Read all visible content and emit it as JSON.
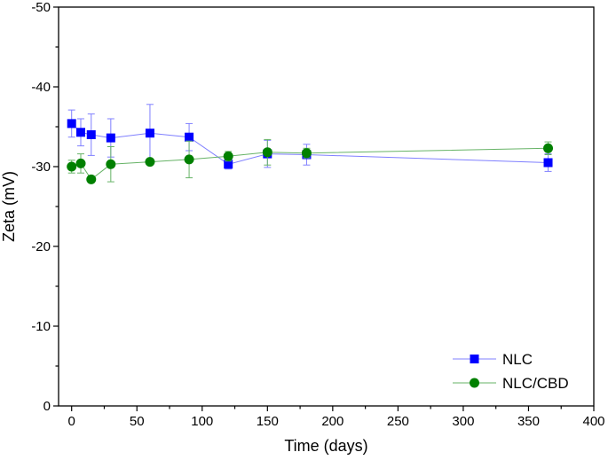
{
  "chart_data": {
    "type": "line",
    "xlabel": "Time (days)",
    "ylabel": "Zeta (mV)",
    "xlim": [
      -10,
      400
    ],
    "ylim": [
      0,
      -50
    ],
    "y_axis_inverted": true,
    "x_ticks": [
      0,
      50,
      100,
      150,
      200,
      250,
      300,
      350,
      400
    ],
    "y_ticks": [
      0,
      -10,
      -20,
      -30,
      -40,
      -50
    ],
    "x_tick_labels": [
      "0",
      "50",
      "100",
      "150",
      "200",
      "250",
      "300",
      "350",
      "400"
    ],
    "y_tick_labels": [
      "0",
      "-10",
      "-20",
      "-30",
      "-40",
      "-50"
    ],
    "grid": false,
    "legend_position": "bottom-right",
    "x": [
      0,
      7,
      15,
      30,
      60,
      90,
      120,
      150,
      180,
      365
    ],
    "series": [
      {
        "name": "NLC",
        "marker": "square",
        "color": "#0000FF",
        "line_color": "#7F7FFF",
        "values": [
          -35.4,
          -34.3,
          -34.0,
          -33.6,
          -34.2,
          -33.7,
          -30.3,
          -31.6,
          -31.5,
          -30.5
        ],
        "errors": [
          1.7,
          1.7,
          2.6,
          2.4,
          3.6,
          1.7,
          0.6,
          1.7,
          1.3,
          1.1
        ]
      },
      {
        "name": "NLC/CBD",
        "marker": "circle",
        "color": "#008000",
        "line_color": "#66B366",
        "values": [
          -30.0,
          -30.4,
          -28.4,
          -30.3,
          -30.6,
          -30.9,
          -31.3,
          -31.8,
          -31.7,
          -32.3
        ],
        "errors": [
          0.8,
          1.2,
          0.4,
          2.2,
          0.3,
          2.3,
          0.6,
          1.6,
          0.6,
          0.8
        ]
      }
    ]
  }
}
